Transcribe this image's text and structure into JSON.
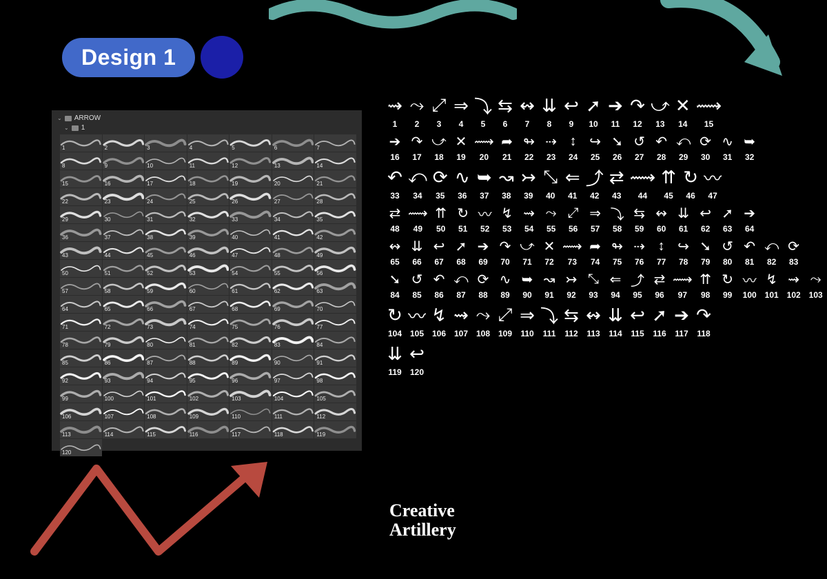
{
  "badge": {
    "label": "Design 1"
  },
  "colors": {
    "badge_bg": "#4169c9",
    "dot": "#1b1fa8",
    "panel_bg": "#2c2c2c",
    "cell_bg": "#3a3a3a",
    "teal": "#5fa8a0",
    "red": "#b84a3f",
    "bg": "#000000"
  },
  "panel": {
    "folder_name": "ARROW",
    "subfolder_name": "1",
    "brush_count": 120,
    "columns": 7
  },
  "catalog": {
    "rows": [
      {
        "start": 1,
        "end": 15
      },
      {
        "start": 16,
        "end": 32
      },
      {
        "start": 33,
        "end": 47
      },
      {
        "start": 48,
        "end": 64
      },
      {
        "start": 65,
        "end": 83
      },
      {
        "start": 84,
        "end": 103
      },
      {
        "start": 104,
        "end": 118
      },
      {
        "start": 119,
        "end": 120
      }
    ],
    "glyph_pool": [
      "↯",
      "➔",
      "↺",
      "⇄",
      "⇆",
      "↬",
      "↝",
      "⇝",
      "↷",
      "↶",
      "⟿",
      "↭",
      "⇢",
      "↣",
      "⤳",
      "⤻",
      "⤺",
      "⇈",
      "⇊",
      "↕",
      "⤡",
      "⤢",
      "✕",
      "⟳",
      "↻",
      "↩",
      "↪",
      "⇐",
      "⇒",
      "⟿",
      "∿",
      "〰",
      "➚",
      "➘",
      "⤴",
      "⤵",
      "➦",
      "➥"
    ]
  },
  "brand": {
    "line1": "Creative",
    "line2": "Artillery"
  }
}
